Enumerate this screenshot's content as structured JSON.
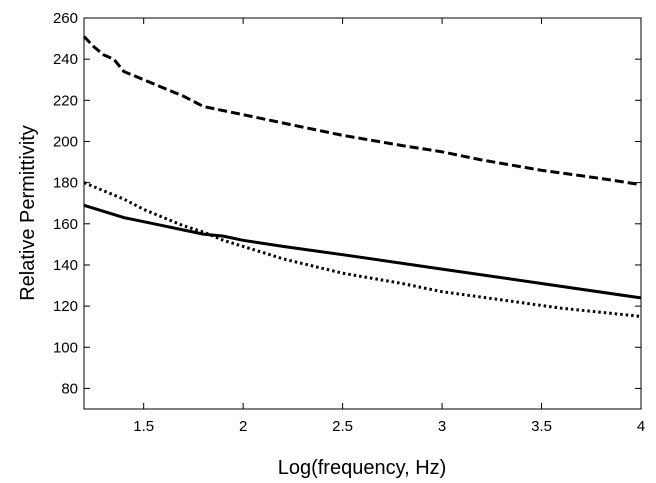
{
  "chart_data": {
    "type": "line",
    "title": "",
    "xlabel": "Log(frequency, Hz)",
    "ylabel": "Relative Permittivity",
    "xlim": [
      1.2,
      4.0
    ],
    "ylim": [
      70,
      260
    ],
    "xticks": [
      1.5,
      2,
      2.5,
      3,
      3.5,
      4
    ],
    "xtick_labels": [
      "1.5",
      "2",
      "2.5",
      "3",
      "3.5",
      "4"
    ],
    "yticks": [
      80,
      100,
      120,
      140,
      160,
      180,
      200,
      220,
      240,
      260
    ],
    "ytick_labels": [
      "80",
      "100",
      "120",
      "140",
      "160",
      "180",
      "200",
      "220",
      "240",
      "260"
    ],
    "grid": false,
    "legend": "none",
    "series": [
      {
        "style": "dashed",
        "color": "#000000",
        "points": [
          [
            1.2,
            251
          ],
          [
            1.25,
            246
          ],
          [
            1.3,
            242
          ],
          [
            1.35,
            240
          ],
          [
            1.4,
            234
          ],
          [
            1.5,
            230
          ],
          [
            1.6,
            226
          ],
          [
            1.7,
            222
          ],
          [
            1.8,
            217
          ],
          [
            1.9,
            215
          ],
          [
            2.0,
            213
          ],
          [
            2.1,
            211
          ],
          [
            2.2,
            209
          ],
          [
            2.5,
            203
          ],
          [
            2.8,
            198
          ],
          [
            3.0,
            195
          ],
          [
            3.2,
            191
          ],
          [
            3.5,
            186
          ],
          [
            3.8,
            182
          ],
          [
            4.0,
            179
          ]
        ]
      },
      {
        "style": "solid",
        "color": "#000000",
        "points": [
          [
            1.2,
            169
          ],
          [
            1.3,
            166
          ],
          [
            1.4,
            163
          ],
          [
            1.5,
            161
          ],
          [
            1.6,
            159
          ],
          [
            1.7,
            157
          ],
          [
            1.8,
            155
          ],
          [
            1.9,
            154
          ],
          [
            2.0,
            152
          ],
          [
            2.2,
            149
          ],
          [
            2.5,
            145
          ],
          [
            3.0,
            138
          ],
          [
            3.5,
            131
          ],
          [
            4.0,
            124
          ]
        ]
      },
      {
        "style": "dotted",
        "color": "#000000",
        "points": [
          [
            1.2,
            180
          ],
          [
            1.3,
            176
          ],
          [
            1.4,
            172
          ],
          [
            1.5,
            167
          ],
          [
            1.6,
            163
          ],
          [
            1.7,
            159
          ],
          [
            1.8,
            156
          ],
          [
            1.9,
            152
          ],
          [
            2.0,
            149
          ],
          [
            2.2,
            143
          ],
          [
            2.5,
            136
          ],
          [
            2.8,
            131
          ],
          [
            3.0,
            127
          ],
          [
            3.3,
            123
          ],
          [
            3.6,
            119
          ],
          [
            4.0,
            115
          ]
        ]
      }
    ]
  }
}
